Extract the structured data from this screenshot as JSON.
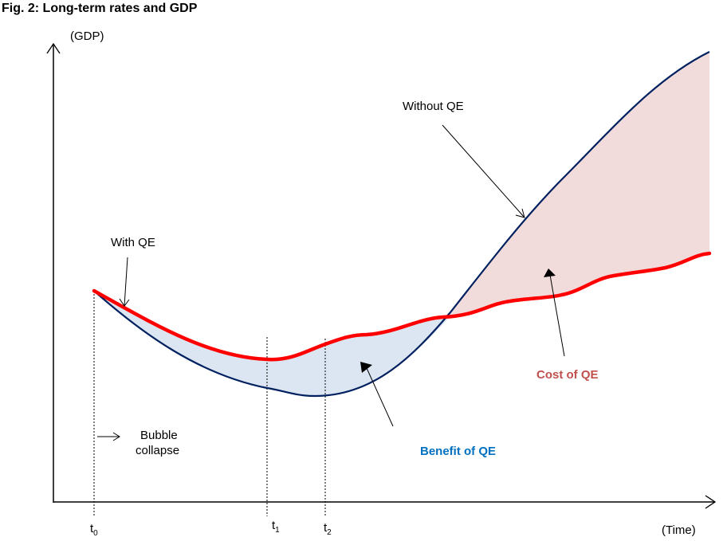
{
  "title": "Fig. 2: Long-term rates and GDP",
  "axes": {
    "y_label": "(GDP)",
    "x_label": "(Time)"
  },
  "time_markers": [
    {
      "base": "t",
      "sub": "0"
    },
    {
      "base": "t",
      "sub": "1"
    },
    {
      "base": "t",
      "sub": "2"
    }
  ],
  "annotations": {
    "with_qe": "With QE",
    "without_qe": "Without QE",
    "bubble_line1": "Bubble",
    "bubble_line2": "collapse",
    "benefit": "Benefit of QE",
    "cost": "Cost of QE"
  },
  "colors": {
    "with_qe_line": "#ff0000",
    "without_qe_line": "#002060",
    "benefit_fill": "#dce6f2",
    "cost_fill": "#f2dcdb",
    "benefit_text": "#0070c0",
    "cost_text": "#c0504d"
  }
}
